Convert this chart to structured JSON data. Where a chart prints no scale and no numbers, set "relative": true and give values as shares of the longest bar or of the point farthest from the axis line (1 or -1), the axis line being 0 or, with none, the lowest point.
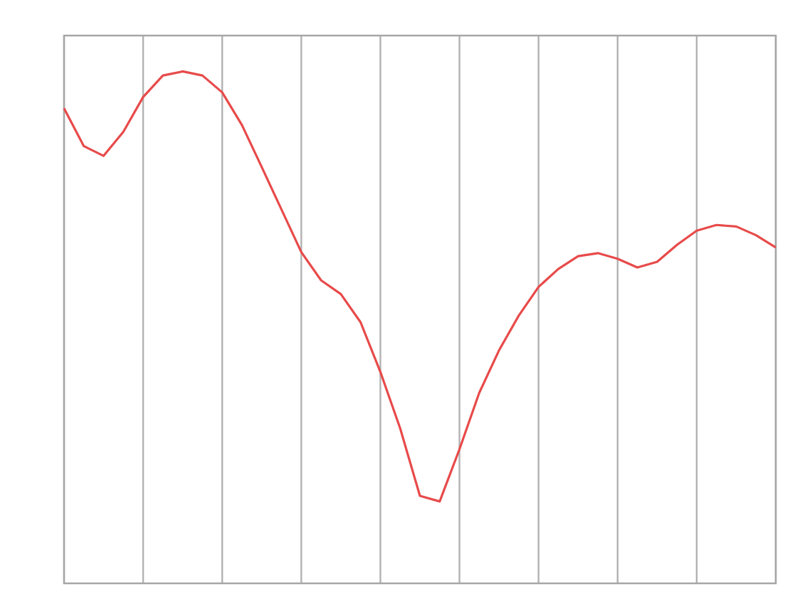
{
  "chart_data": {
    "type": "line",
    "relative": true,
    "grid": "x",
    "marker": "none",
    "line_style": "solid",
    "categories": [
      null,
      null,
      null,
      null,
      null,
      null,
      null,
      null,
      null,
      null,
      null,
      null,
      null,
      null,
      null,
      null,
      null,
      null,
      null,
      null,
      null,
      null,
      null,
      null,
      null,
      null,
      null,
      null,
      null,
      null,
      null,
      null,
      null,
      null,
      null,
      null,
      null
    ],
    "series": [
      {
        "color": "#e84a4a",
        "values": [
          0.928,
          0.854,
          0.835,
          0.882,
          0.95,
          0.992,
          1.0,
          0.992,
          0.959,
          0.895,
          0.813,
          0.73,
          0.647,
          0.592,
          0.565,
          0.51,
          0.413,
          0.303,
          0.171,
          0.16,
          0.262,
          0.372,
          0.455,
          0.523,
          0.579,
          0.614,
          0.639,
          0.645,
          0.634,
          0.617,
          0.628,
          0.661,
          0.689,
          0.7,
          0.697,
          0.68,
          0.656
        ]
      }
    ]
  }
}
